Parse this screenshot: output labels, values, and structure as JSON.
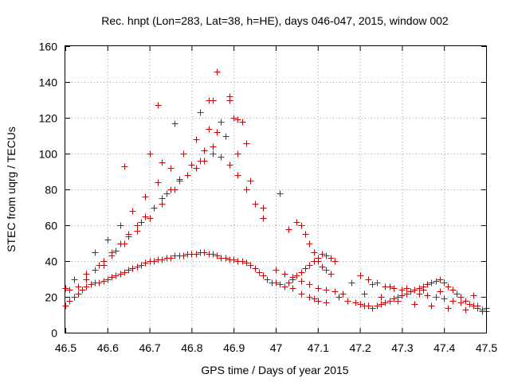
{
  "chart_data": {
    "type": "scatter",
    "title": "Rec. hnpt (Lon=283, Lat=38, h=HE), days 046-047, 2015, window 002",
    "xlabel": "GPS time / Days of year 2015",
    "ylabel": "STEC from uqrg / TECUs",
    "xlim": [
      46.5,
      47.5
    ],
    "ylim": [
      0,
      160
    ],
    "xticks": [
      "46.5",
      "46.6",
      "46.7",
      "46.8",
      "46.9",
      "47",
      "47.1",
      "47.2",
      "47.3",
      "47.4",
      "47.5"
    ],
    "yticks": [
      "0",
      "20",
      "40",
      "60",
      "80",
      "100",
      "120",
      "140",
      "160"
    ],
    "grid": true,
    "marker": "plus",
    "color": "#cc0000",
    "series": [
      {
        "name": "STEC",
        "x": [
          46.5,
          46.51,
          46.52,
          46.53,
          46.54,
          46.55,
          46.56,
          46.57,
          46.58,
          46.59,
          46.6,
          46.61,
          46.62,
          46.63,
          46.64,
          46.65,
          46.66,
          46.67,
          46.68,
          46.69,
          46.7,
          46.71,
          46.72,
          46.73,
          46.74,
          46.75,
          46.76,
          46.77,
          46.78,
          46.79,
          46.8,
          46.81,
          46.82,
          46.83,
          46.84,
          46.85,
          46.86,
          46.87,
          46.88,
          46.89,
          46.9,
          46.91,
          46.92,
          46.93,
          46.94,
          46.95,
          46.96,
          46.97,
          46.98,
          46.99,
          46.5,
          46.51,
          46.53,
          46.55,
          46.57,
          46.59,
          46.61,
          46.63,
          46.65,
          46.67,
          46.69,
          46.71,
          46.73,
          46.75,
          46.77,
          46.79,
          46.81,
          46.83,
          46.85,
          46.87,
          46.89,
          46.91,
          46.93,
          46.95,
          46.97,
          46.52,
          46.55,
          46.58,
          46.61,
          46.64,
          46.67,
          46.7,
          46.73,
          46.76,
          46.79,
          46.82,
          46.85,
          46.88,
          46.91,
          46.94,
          46.97,
          46.57,
          46.6,
          46.63,
          46.66,
          46.69,
          46.72,
          46.75,
          46.78,
          46.81,
          46.84,
          46.87,
          46.9,
          46.93,
          46.59,
          46.62,
          46.65,
          46.68,
          46.71,
          46.74,
          46.77,
          46.8,
          46.83,
          46.86,
          46.89,
          46.92,
          46.95,
          46.64,
          46.7,
          46.72,
          46.76,
          46.82,
          46.84,
          46.85,
          46.86,
          46.89,
          46.91,
          46.73,
          47.0,
          47.01,
          47.02,
          47.03,
          47.04,
          47.05,
          47.06,
          47.07,
          47.08,
          47.09,
          47.1,
          47.11,
          47.12,
          47.13,
          47.14,
          47.01,
          47.03,
          47.05,
          47.06,
          47.07,
          47.08,
          47.09,
          47.1,
          47.11,
          47.12,
          47.13,
          47.04,
          47.06,
          47.08,
          47.09,
          47.1,
          47.12,
          47.0,
          47.02,
          47.04,
          47.06,
          47.08,
          47.1,
          47.12,
          47.14,
          47.16,
          47.15,
          47.17,
          47.19,
          47.2,
          47.21,
          47.22,
          47.23,
          47.24,
          47.25,
          47.26,
          47.27,
          47.28,
          47.29,
          47.3,
          47.31,
          47.32,
          47.33,
          47.34,
          47.35,
          47.36,
          47.37,
          47.38,
          47.39,
          47.4,
          47.41,
          47.42,
          47.43,
          47.44,
          47.45,
          47.46,
          47.47,
          47.48,
          47.49,
          47.5,
          47.2,
          47.22,
          47.24,
          47.26,
          47.28,
          47.3,
          47.32,
          47.34,
          47.36,
          47.38,
          47.4,
          47.42,
          47.44,
          47.46,
          47.48,
          47.5,
          47.21,
          47.25,
          47.29,
          47.33,
          47.37,
          47.41,
          47.45,
          47.49,
          47.18,
          47.23,
          47.27,
          47.31,
          47.35,
          47.39,
          47.43,
          47.47
        ],
        "y": [
          15,
          18,
          20,
          22,
          24,
          26,
          27,
          28,
          28,
          29,
          30,
          31,
          32,
          33,
          34,
          35,
          36,
          37,
          38,
          39,
          40,
          40,
          41,
          41,
          42,
          42,
          43,
          43,
          43,
          44,
          44,
          44,
          45,
          45,
          44,
          44,
          43,
          42,
          42,
          41,
          41,
          40,
          40,
          39,
          38,
          36,
          34,
          32,
          30,
          28,
          25,
          24,
          26,
          30,
          35,
          40,
          45,
          50,
          55,
          60,
          65,
          70,
          75,
          80,
          85,
          88,
          92,
          96,
          100,
          98,
          94,
          88,
          80,
          72,
          64,
          30,
          33,
          38,
          43,
          50,
          57,
          64,
          72,
          80,
          88,
          96,
          104,
          110,
          100,
          85,
          70,
          45,
          52,
          60,
          68,
          76,
          84,
          92,
          100,
          108,
          114,
          118,
          120,
          106,
          38,
          46,
          54,
          62,
          70,
          78,
          86,
          94,
          102,
          112,
          130,
          118,
          72,
          93,
          100,
          127,
          117,
          123,
          130,
          130,
          146,
          132,
          119,
          95,
          28,
          27,
          26,
          28,
          30,
          32,
          34,
          36,
          38,
          40,
          42,
          44,
          43,
          42,
          40,
          78,
          58,
          62,
          60,
          55,
          50,
          45,
          40,
          37,
          35,
          33,
          25,
          22,
          20,
          19,
          18,
          17,
          35,
          33,
          31,
          29,
          27,
          25,
          24,
          23,
          22,
          20,
          18,
          17,
          16,
          15,
          15,
          14,
          15,
          16,
          17,
          18,
          19,
          20,
          21,
          22,
          23,
          24,
          25,
          26,
          27,
          28,
          29,
          30,
          28,
          26,
          24,
          22,
          20,
          18,
          16,
          15,
          14,
          13,
          12,
          32,
          30,
          28,
          26,
          25,
          24,
          23,
          22,
          21,
          20,
          19,
          18,
          17,
          16,
          15,
          14,
          22,
          20,
          18,
          16,
          15,
          14,
          13,
          12,
          28,
          27,
          26,
          25,
          24,
          23,
          22,
          21
        ]
      }
    ]
  }
}
